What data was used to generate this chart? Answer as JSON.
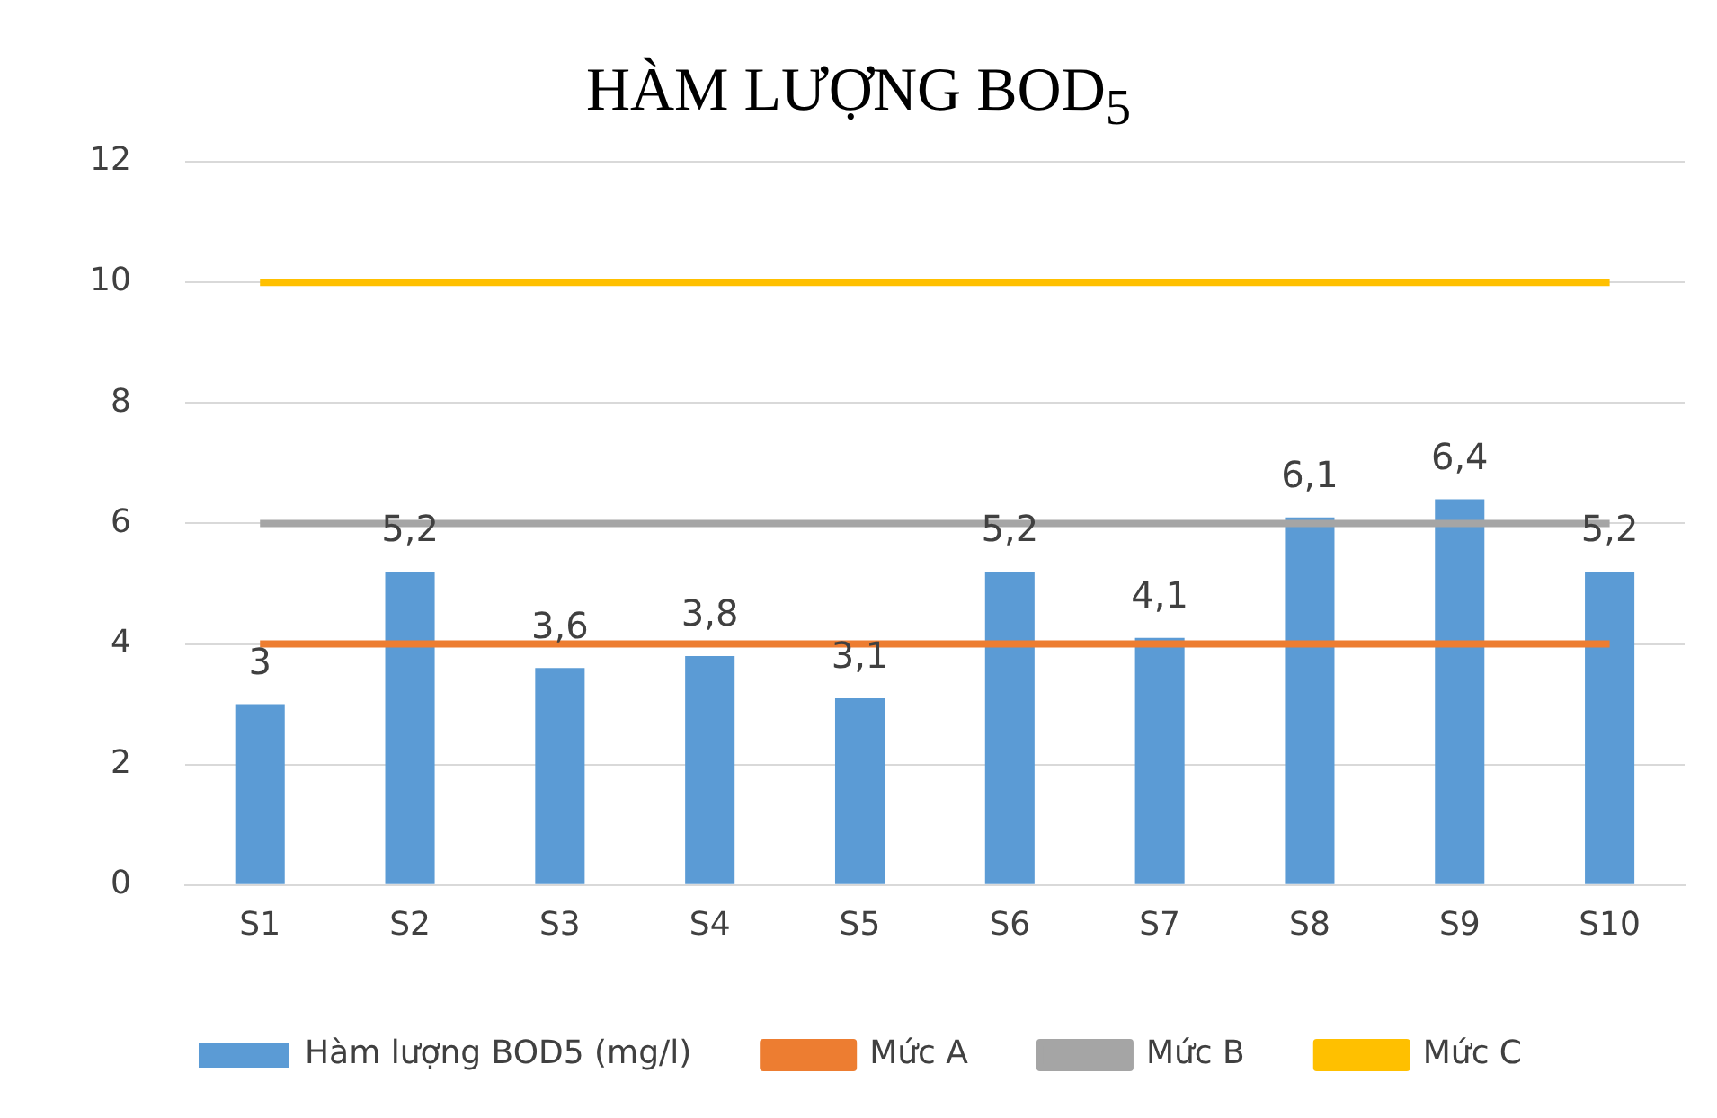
{
  "chart_data": {
    "type": "bar",
    "title": "HÀM LƯỢNG BOD$_{5}$",
    "categories": [
      "S1",
      "S2",
      "S3",
      "S4",
      "S5",
      "S6",
      "S7",
      "S8",
      "S9",
      "S10"
    ],
    "series": [
      {
        "name": "Hàm lượng BOD5 (mg/l)",
        "color": "#5b9bd5",
        "values": [
          3,
          5.2,
          3.6,
          3.8,
          3.1,
          5.2,
          4.1,
          6.1,
          6.4,
          5.2
        ],
        "value_labels": [
          "3",
          "5,2",
          "3,6",
          "3,8",
          "3,1",
          "5,2",
          "4,1",
          "6,1",
          "6,4",
          "5,2"
        ]
      },
      {
        "name": "Mức A",
        "type": "line",
        "color": "#ed7d31",
        "values": [
          4,
          4,
          4,
          4,
          4,
          4,
          4,
          4,
          4,
          4
        ]
      },
      {
        "name": "Mức B",
        "type": "line",
        "color": "#a5a5a5",
        "values": [
          6,
          6,
          6,
          6,
          6,
          6,
          6,
          6,
          6,
          6
        ]
      },
      {
        "name": "Mức C",
        "type": "line",
        "color": "#ffc000",
        "values": [
          10,
          10,
          10,
          10,
          10,
          10,
          10,
          10,
          10,
          10
        ]
      }
    ],
    "ylim": [
      0,
      12
    ],
    "yticks": [
      0,
      2,
      4,
      6,
      8,
      10,
      12
    ],
    "grid": "y",
    "legend": "bottom",
    "marker": "none"
  }
}
